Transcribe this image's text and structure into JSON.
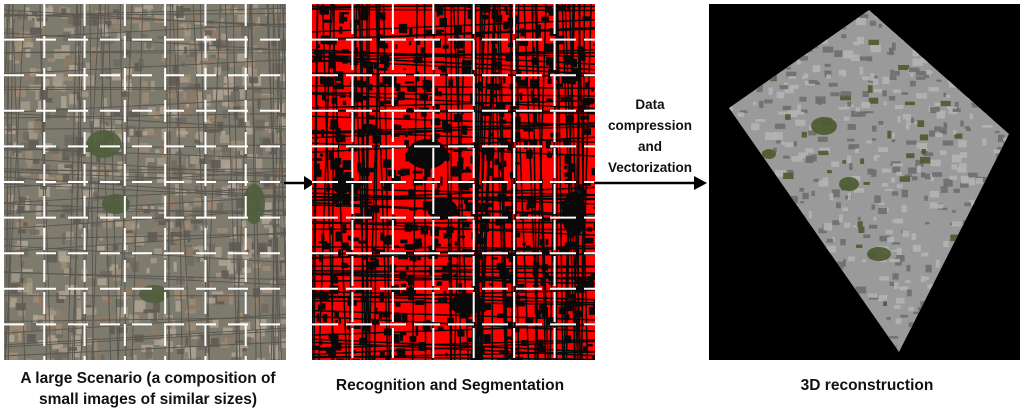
{
  "panels": {
    "aerial": {
      "caption_lines": [
        "A large Scenario (a composition of",
        "small images of similar sizes)"
      ],
      "colors": {
        "base": "#7d7a6e",
        "grid": "#ffffff",
        "roof": [
          "#8c7a66",
          "#9e8c76",
          "#6f6a60",
          "#a39a8a",
          "#5e5a52",
          "#b0a593"
        ],
        "park": "#4f5e3c"
      }
    },
    "segmentation": {
      "caption_lines": [
        "Recognition and Segmentation"
      ],
      "colors": {
        "base": "#090909",
        "building": "#ff0000",
        "grid": "#ffffff"
      }
    },
    "reconstruction": {
      "caption_lines": [
        "3D reconstruction"
      ],
      "colors": {
        "background": "#000000",
        "building": "#9a9a9a",
        "shade": "#6e6e6e",
        "vegetation": "#4c5a2e"
      }
    }
  },
  "arrows": {
    "second": {
      "label_lines": [
        "Data",
        "compression",
        "and",
        "Vectorization"
      ]
    }
  }
}
